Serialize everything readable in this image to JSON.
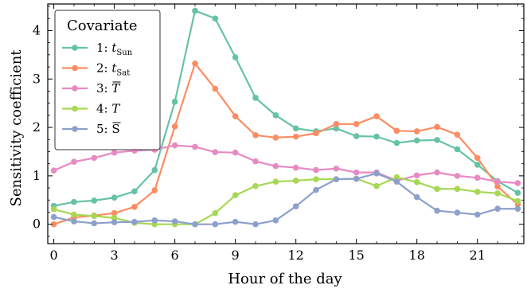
{
  "chart_data": {
    "type": "line",
    "xlabel": "Hour of the day",
    "ylabel": "Sensitivity coefficient",
    "xlim": [
      -0.3,
      23.3
    ],
    "ylim": [
      -0.4,
      4.55
    ],
    "xticks": [
      0,
      3,
      6,
      9,
      12,
      15,
      18,
      21
    ],
    "yticks": [
      0,
      1,
      2,
      3,
      4
    ],
    "grid": false,
    "legend": {
      "title": "Covariate",
      "position": "top-left"
    },
    "x": [
      0,
      1,
      2,
      3,
      4,
      5,
      6,
      7,
      8,
      9,
      10,
      11,
      12,
      13,
      14,
      15,
      16,
      17,
      18,
      19,
      20,
      21,
      22,
      23
    ],
    "series": [
      {
        "name": "1: tSun",
        "label_parts": {
          "prefix": "1: ",
          "main": "t",
          "sub": "Sun",
          "italic": true,
          "bar": false
        },
        "color": "#66c2a5",
        "values": [
          0.38,
          0.46,
          0.49,
          0.55,
          0.68,
          1.12,
          2.53,
          4.41,
          4.25,
          3.45,
          2.61,
          2.25,
          1.98,
          1.92,
          1.98,
          1.82,
          1.81,
          1.68,
          1.73,
          1.74,
          1.55,
          1.23,
          0.89,
          0.65
        ]
      },
      {
        "name": "2: tSat",
        "label_parts": {
          "prefix": "2: ",
          "main": "t",
          "sub": "Sat",
          "italic": true,
          "bar": false
        },
        "color": "#fc8d62",
        "values": [
          0.0,
          0.14,
          0.18,
          0.23,
          0.36,
          0.7,
          2.02,
          3.32,
          2.8,
          2.23,
          1.84,
          1.79,
          1.81,
          1.88,
          2.07,
          2.07,
          2.23,
          1.93,
          1.92,
          2.01,
          1.85,
          1.37,
          0.78,
          0.41
        ]
      },
      {
        "name": "3: T̄",
        "label_parts": {
          "prefix": "3: ",
          "main": "T",
          "sub": "",
          "italic": true,
          "bar": true
        },
        "color": "#e78ac3",
        "values": [
          1.11,
          1.29,
          1.37,
          1.48,
          1.52,
          1.54,
          1.63,
          1.6,
          1.49,
          1.48,
          1.3,
          1.2,
          1.17,
          1.12,
          1.15,
          1.07,
          1.07,
          0.9,
          1.01,
          1.07,
          1.0,
          0.96,
          0.88,
          0.85
        ]
      },
      {
        "name": "4: T",
        "label_parts": {
          "prefix": "4: ",
          "main": "T",
          "sub": "",
          "italic": true,
          "bar": false
        },
        "color": "#a6d854",
        "values": [
          0.31,
          0.2,
          0.17,
          0.13,
          0.03,
          0.0,
          0.0,
          0.0,
          0.23,
          0.6,
          0.79,
          0.88,
          0.9,
          0.93,
          0.93,
          0.94,
          0.79,
          0.97,
          0.87,
          0.73,
          0.73,
          0.67,
          0.64,
          0.48
        ]
      },
      {
        "name": "5: S̄",
        "label_parts": {
          "prefix": "5: ",
          "main": "S",
          "sub": "",
          "italic": false,
          "bar": true
        },
        "color": "#8da0cb",
        "values": [
          0.15,
          0.06,
          0.02,
          0.04,
          0.05,
          0.08,
          0.06,
          0.0,
          0.0,
          0.05,
          0.0,
          0.08,
          0.37,
          0.71,
          0.93,
          0.94,
          1.05,
          0.88,
          0.56,
          0.28,
          0.24,
          0.2,
          0.32,
          0.32
        ]
      }
    ]
  }
}
